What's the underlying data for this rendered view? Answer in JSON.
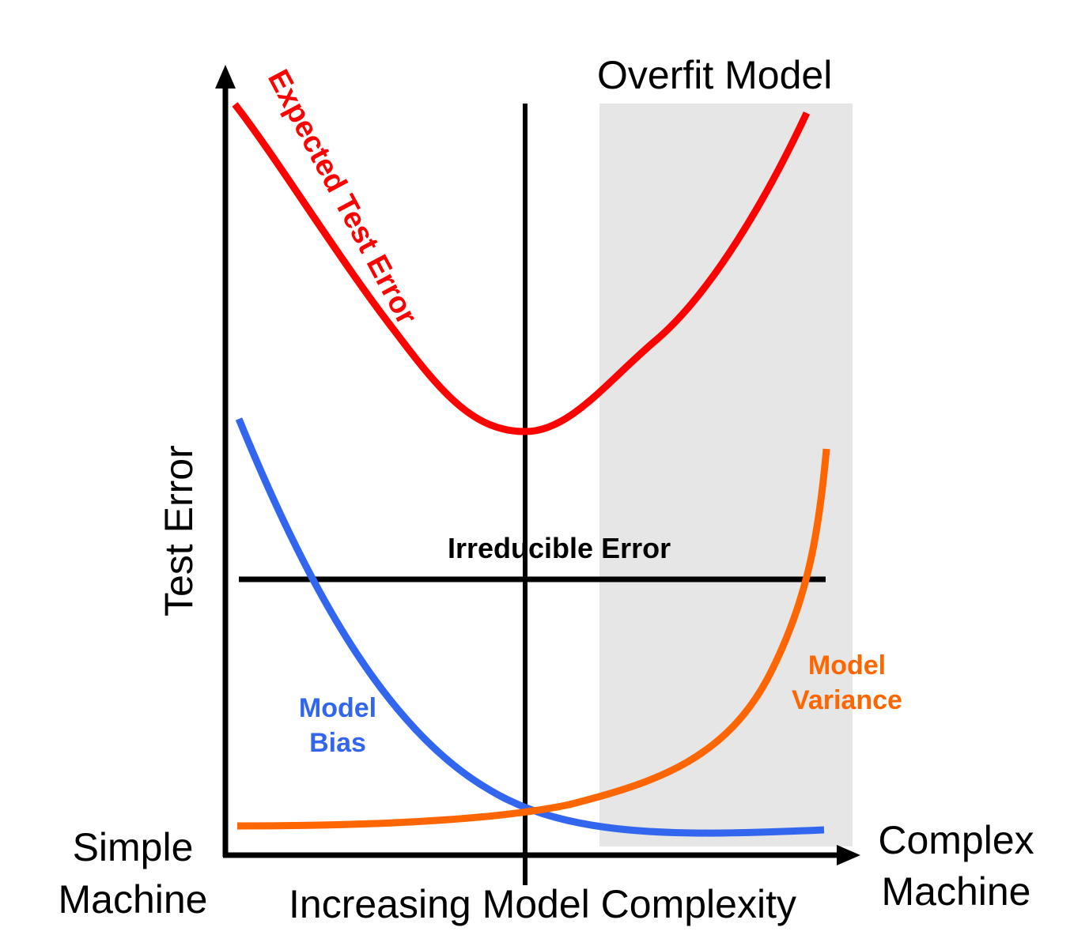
{
  "colors": {
    "test_error": "#ff0000",
    "bias": "#3366ee",
    "variance": "#ff6600",
    "axis": "#000000",
    "overfit_region": "#e6e6e6"
  },
  "labels": {
    "overfit_model": "Overfit Model",
    "expected_test_error": "Expected Test Error",
    "test_error_axis": "Test Error",
    "irreducible_error": "Irreducible Error",
    "model_variance_line1": "Model",
    "model_variance_line2": "Variance",
    "model_bias_line1": "Model",
    "model_bias_line2": "Bias",
    "simple_line1": "Simple",
    "simple_line2": "Machine",
    "complex_line1": "Complex",
    "complex_line2": "Machine",
    "x_axis": "Increasing Model Complexity"
  },
  "icons": {
    "y_arrow": "arrow-up-icon",
    "x_arrow": "arrow-right-icon"
  }
}
